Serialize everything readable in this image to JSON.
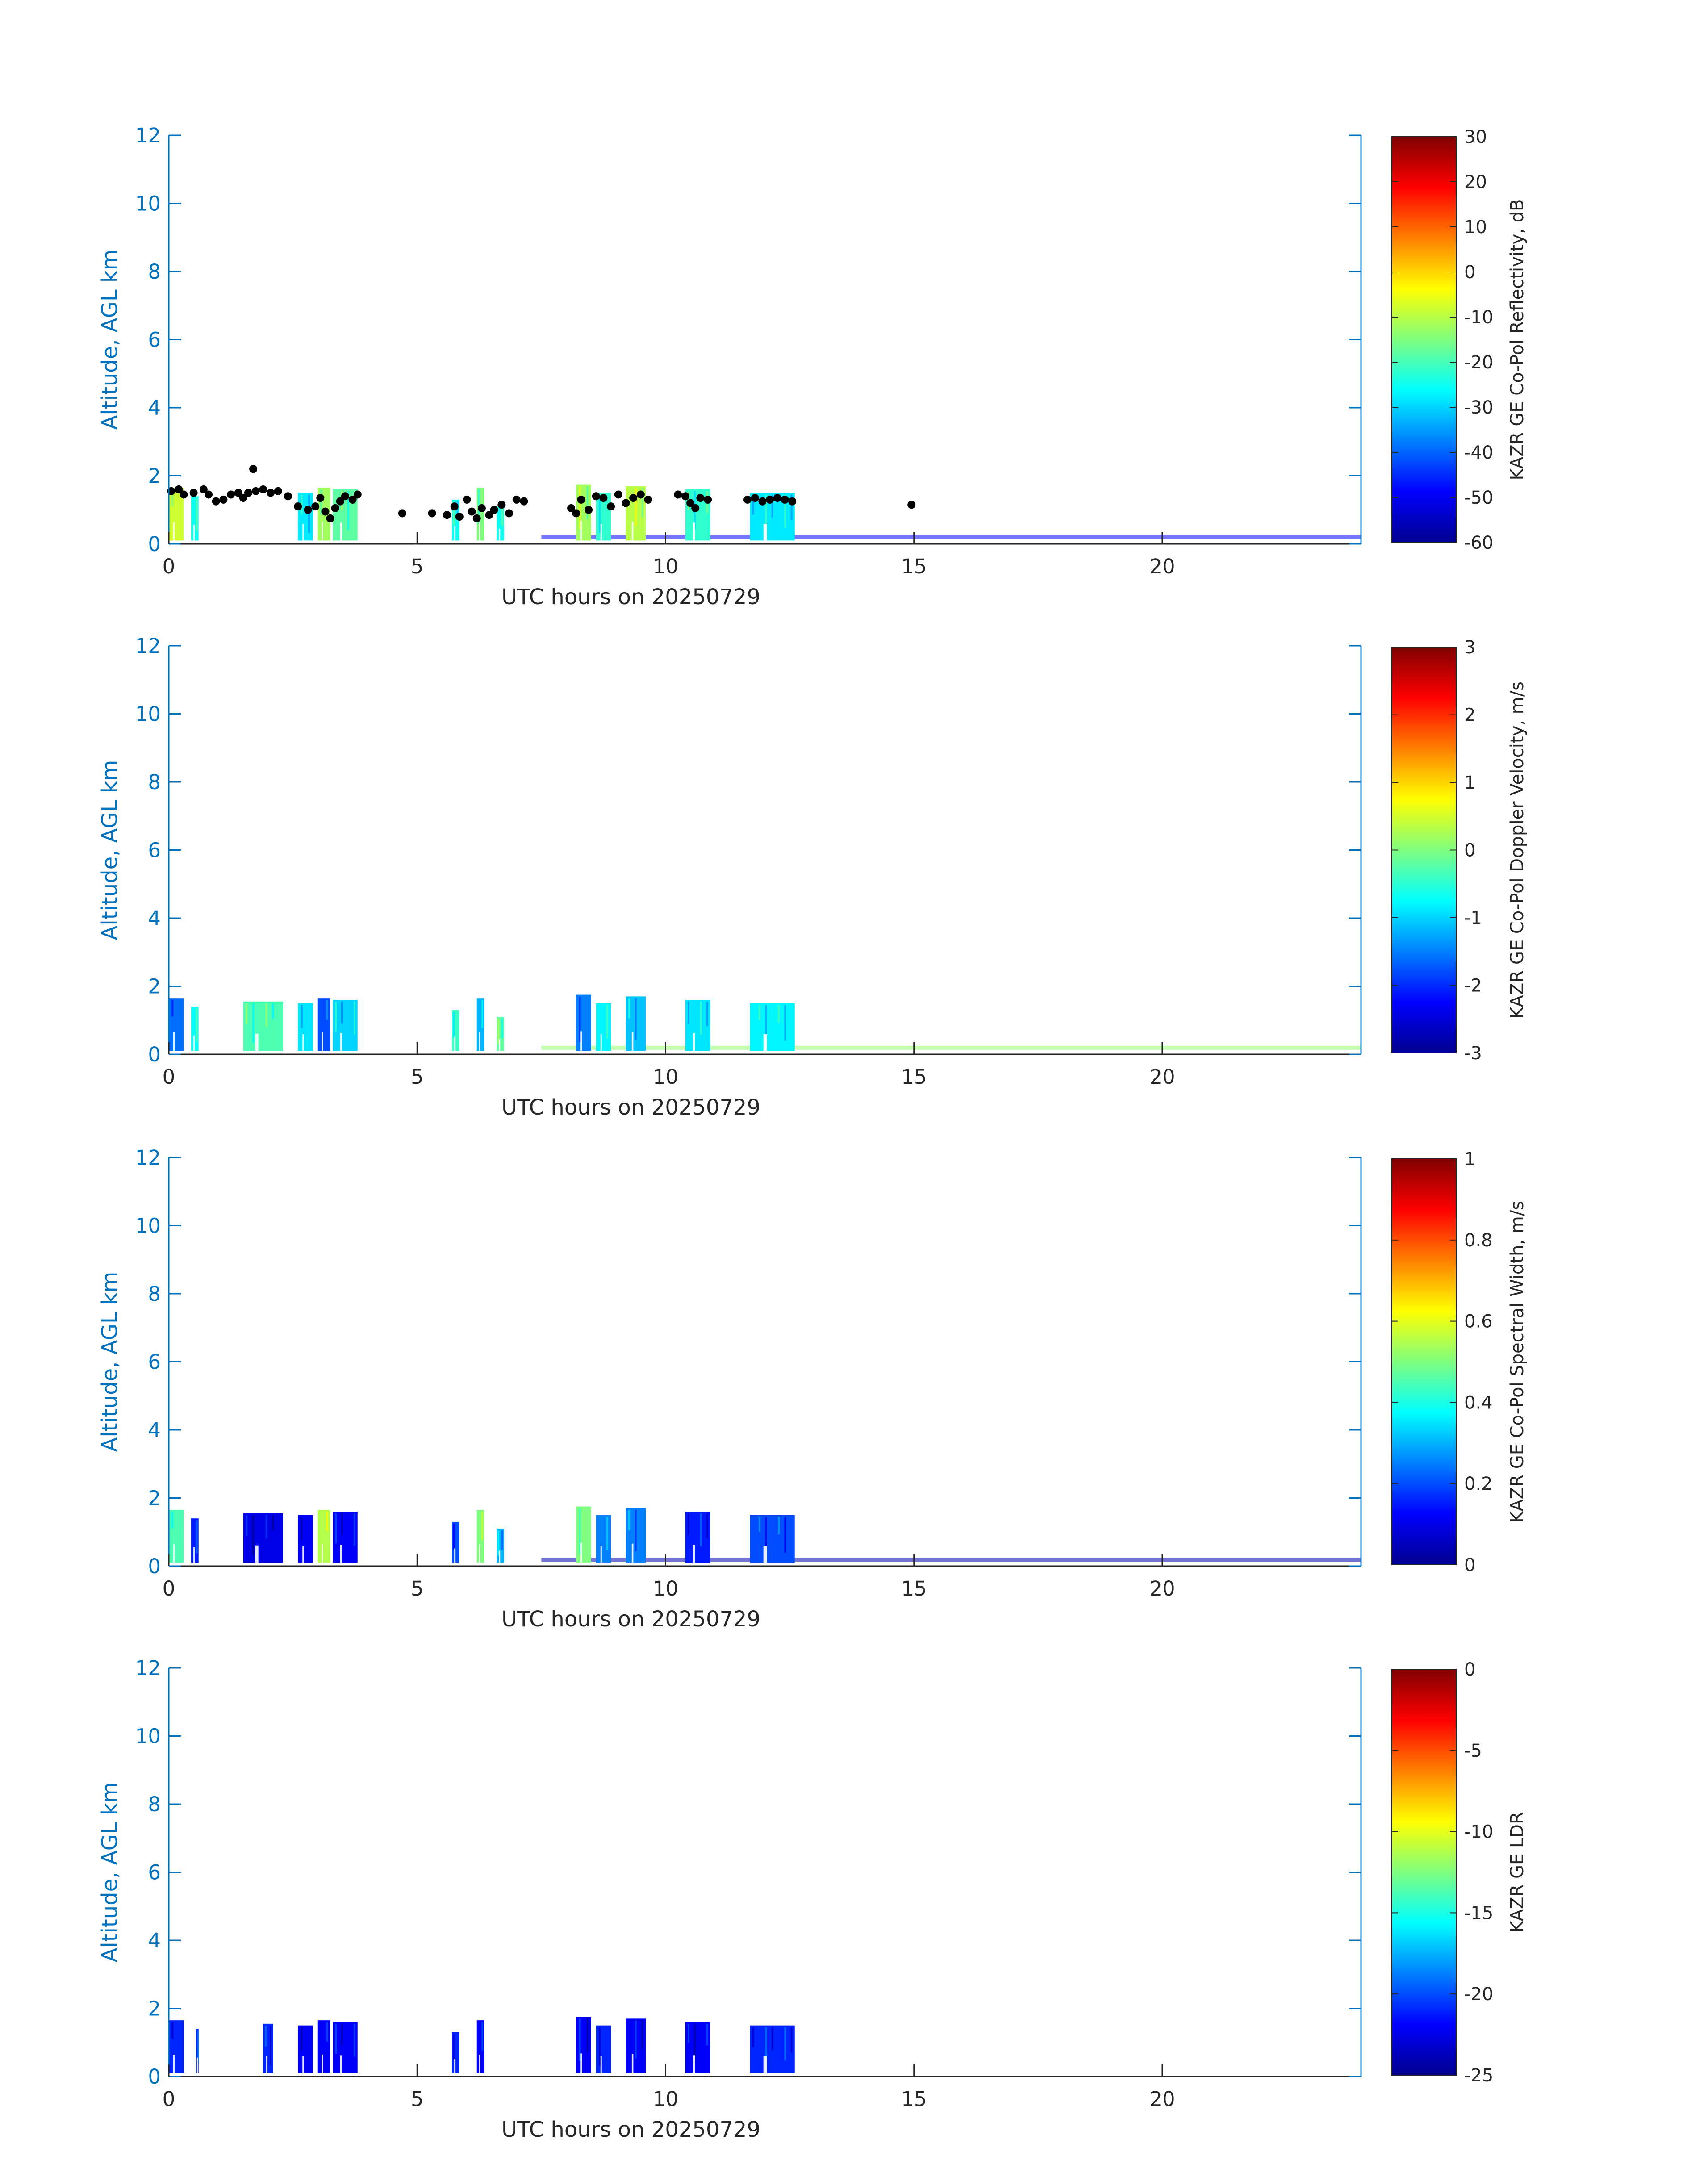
{
  "chart_data": [
    {
      "type": "heatmap",
      "title": "",
      "xlabel": "UTC hours on 20250729",
      "ylabel": "Altitude, AGL km",
      "xlim": [
        0,
        24
      ],
      "ylim": [
        0,
        12
      ],
      "xticks": [
        "0",
        "5",
        "10",
        "15",
        "20"
      ],
      "yticks": [
        "0",
        "2",
        "4",
        "6",
        "8",
        "10",
        "12"
      ],
      "colorbar": {
        "label": "KAZR GE Co-Pol Reflectivity, dB",
        "range": [
          -60,
          30
        ],
        "ticks": [
          "30",
          "20",
          "10",
          "0",
          "-10",
          "-20",
          "-30",
          "-40",
          "-50",
          "-60"
        ]
      },
      "echoes": [
        {
          "x0": 0.0,
          "x1": 0.3,
          "ytop": 1.65,
          "value": -8
        },
        {
          "x0": 0.45,
          "x1": 0.6,
          "ytop": 1.4,
          "value": -25
        },
        {
          "x0": 2.6,
          "x1": 2.9,
          "ytop": 1.5,
          "value": -28
        },
        {
          "x0": 3.0,
          "x1": 3.25,
          "ytop": 1.65,
          "value": -12
        },
        {
          "x0": 3.3,
          "x1": 3.8,
          "ytop": 1.6,
          "value": -18
        },
        {
          "x0": 5.7,
          "x1": 5.85,
          "ytop": 1.3,
          "value": -25
        },
        {
          "x0": 6.2,
          "x1": 6.35,
          "ytop": 1.65,
          "value": -15
        },
        {
          "x0": 6.6,
          "x1": 6.75,
          "ytop": 1.1,
          "value": -25
        },
        {
          "x0": 8.2,
          "x1": 8.5,
          "ytop": 1.75,
          "value": -12
        },
        {
          "x0": 8.6,
          "x1": 8.9,
          "ytop": 1.5,
          "value": -22
        },
        {
          "x0": 9.2,
          "x1": 9.6,
          "ytop": 1.7,
          "value": -10
        },
        {
          "x0": 10.4,
          "x1": 10.9,
          "ytop": 1.6,
          "value": -22
        },
        {
          "x0": 11.7,
          "x1": 12.6,
          "ytop": 1.5,
          "value": -28
        }
      ],
      "surface_layer": {
        "x0": 7.5,
        "x1": 24.0,
        "height": 0.25,
        "value": -48
      },
      "cloud_base_points": [
        [
          0.05,
          1.55
        ],
        [
          0.2,
          1.6
        ],
        [
          0.3,
          1.45
        ],
        [
          0.5,
          1.5
        ],
        [
          0.7,
          1.6
        ],
        [
          0.8,
          1.45
        ],
        [
          0.95,
          1.25
        ],
        [
          1.1,
          1.3
        ],
        [
          1.25,
          1.45
        ],
        [
          1.4,
          1.5
        ],
        [
          1.5,
          1.35
        ],
        [
          1.6,
          1.5
        ],
        [
          1.7,
          2.2
        ],
        [
          1.75,
          1.55
        ],
        [
          1.9,
          1.6
        ],
        [
          2.05,
          1.5
        ],
        [
          2.2,
          1.55
        ],
        [
          2.4,
          1.4
        ],
        [
          2.6,
          1.1
        ],
        [
          2.8,
          1.0
        ],
        [
          2.95,
          1.1
        ],
        [
          3.05,
          1.35
        ],
        [
          3.15,
          0.95
        ],
        [
          3.25,
          0.75
        ],
        [
          3.35,
          1.05
        ],
        [
          3.45,
          1.25
        ],
        [
          3.55,
          1.4
        ],
        [
          3.7,
          1.3
        ],
        [
          3.8,
          1.45
        ],
        [
          4.7,
          0.9
        ],
        [
          5.3,
          0.9
        ],
        [
          5.6,
          0.85
        ],
        [
          5.75,
          1.1
        ],
        [
          5.85,
          0.8
        ],
        [
          6.0,
          1.3
        ],
        [
          6.1,
          0.95
        ],
        [
          6.2,
          0.75
        ],
        [
          6.3,
          1.05
        ],
        [
          6.45,
          0.85
        ],
        [
          6.55,
          1.0
        ],
        [
          6.7,
          1.15
        ],
        [
          6.85,
          0.9
        ],
        [
          7.0,
          1.3
        ],
        [
          7.15,
          1.25
        ],
        [
          8.1,
          1.05
        ],
        [
          8.2,
          0.9
        ],
        [
          8.3,
          1.3
        ],
        [
          8.45,
          1.0
        ],
        [
          8.6,
          1.4
        ],
        [
          8.75,
          1.35
        ],
        [
          8.9,
          1.1
        ],
        [
          9.05,
          1.45
        ],
        [
          9.2,
          1.2
        ],
        [
          9.35,
          1.35
        ],
        [
          9.5,
          1.45
        ],
        [
          9.65,
          1.3
        ],
        [
          10.25,
          1.45
        ],
        [
          10.4,
          1.4
        ],
        [
          10.5,
          1.2
        ],
        [
          10.6,
          1.05
        ],
        [
          10.7,
          1.35
        ],
        [
          10.85,
          1.3
        ],
        [
          11.65,
          1.3
        ],
        [
          11.8,
          1.35
        ],
        [
          11.95,
          1.25
        ],
        [
          12.1,
          1.3
        ],
        [
          12.25,
          1.35
        ],
        [
          12.4,
          1.3
        ],
        [
          12.55,
          1.25
        ],
        [
          14.95,
          1.15
        ]
      ]
    },
    {
      "type": "heatmap",
      "title": "",
      "xlabel": "UTC hours on 20250729",
      "ylabel": "Altitude, AGL km",
      "xlim": [
        0,
        24
      ],
      "ylim": [
        0,
        12
      ],
      "xticks": [
        "0",
        "5",
        "10",
        "15",
        "20"
      ],
      "yticks": [
        "0",
        "2",
        "4",
        "6",
        "8",
        "10",
        "12"
      ],
      "colorbar": {
        "label": "KAZR GE Co-Pol Doppler Velocity, m/s",
        "range": [
          -3,
          3
        ],
        "ticks": [
          "3",
          "2",
          "1",
          "0",
          "-1",
          "-2",
          "-3"
        ]
      },
      "echoes": [
        {
          "x0": 0.0,
          "x1": 0.3,
          "ytop": 1.65,
          "value": -1.6
        },
        {
          "x0": 0.45,
          "x1": 0.6,
          "ytop": 1.4,
          "value": -0.7
        },
        {
          "x0": 1.5,
          "x1": 2.3,
          "ytop": 1.55,
          "value": -0.3
        },
        {
          "x0": 2.6,
          "x1": 2.9,
          "ytop": 1.5,
          "value": -0.9
        },
        {
          "x0": 3.0,
          "x1": 3.25,
          "ytop": 1.65,
          "value": -1.8
        },
        {
          "x0": 3.3,
          "x1": 3.8,
          "ytop": 1.6,
          "value": -1.0
        },
        {
          "x0": 5.7,
          "x1": 5.85,
          "ytop": 1.3,
          "value": -0.4
        },
        {
          "x0": 6.2,
          "x1": 6.35,
          "ytop": 1.65,
          "value": -1.2
        },
        {
          "x0": 6.6,
          "x1": 6.75,
          "ytop": 1.1,
          "value": -0.2
        },
        {
          "x0": 8.2,
          "x1": 8.5,
          "ytop": 1.75,
          "value": -1.5
        },
        {
          "x0": 8.6,
          "x1": 8.9,
          "ytop": 1.5,
          "value": -0.8
        },
        {
          "x0": 9.2,
          "x1": 9.6,
          "ytop": 1.7,
          "value": -1.1
        },
        {
          "x0": 10.4,
          "x1": 10.9,
          "ytop": 1.6,
          "value": -0.9
        },
        {
          "x0": 11.7,
          "x1": 12.6,
          "ytop": 1.5,
          "value": -0.8
        }
      ],
      "surface_layer": {
        "x0": 7.5,
        "x1": 24.0,
        "height": 0.25,
        "value": 0.1
      }
    },
    {
      "type": "heatmap",
      "title": "",
      "xlabel": "UTC hours on 20250729",
      "ylabel": "Altitude, AGL km",
      "xlim": [
        0,
        24
      ],
      "ylim": [
        0,
        12
      ],
      "xticks": [
        "0",
        "5",
        "10",
        "15",
        "20"
      ],
      "yticks": [
        "0",
        "2",
        "4",
        "6",
        "8",
        "10",
        "12"
      ],
      "colorbar": {
        "label": "KAZR GE Co-Pol Spectral Width, m/s",
        "range": [
          0,
          1
        ],
        "ticks": [
          "1",
          "0.8",
          "0.6",
          "0.4",
          "0.2",
          "0"
        ]
      },
      "echoes": [
        {
          "x0": 0.0,
          "x1": 0.3,
          "ytop": 1.65,
          "value": 0.45
        },
        {
          "x0": 0.45,
          "x1": 0.6,
          "ytop": 1.4,
          "value": 0.15
        },
        {
          "x0": 1.5,
          "x1": 2.3,
          "ytop": 1.55,
          "value": 0.1
        },
        {
          "x0": 2.6,
          "x1": 2.9,
          "ytop": 1.5,
          "value": 0.12
        },
        {
          "x0": 3.0,
          "x1": 3.25,
          "ytop": 1.65,
          "value": 0.55
        },
        {
          "x0": 3.3,
          "x1": 3.8,
          "ytop": 1.6,
          "value": 0.12
        },
        {
          "x0": 5.7,
          "x1": 5.85,
          "ytop": 1.3,
          "value": 0.2
        },
        {
          "x0": 6.2,
          "x1": 6.35,
          "ytop": 1.65,
          "value": 0.5
        },
        {
          "x0": 6.6,
          "x1": 6.75,
          "ytop": 1.1,
          "value": 0.3
        },
        {
          "x0": 8.2,
          "x1": 8.5,
          "ytop": 1.75,
          "value": 0.5
        },
        {
          "x0": 8.6,
          "x1": 8.9,
          "ytop": 1.5,
          "value": 0.25
        },
        {
          "x0": 9.2,
          "x1": 9.6,
          "ytop": 1.7,
          "value": 0.25
        },
        {
          "x0": 10.4,
          "x1": 10.9,
          "ytop": 1.6,
          "value": 0.15
        },
        {
          "x0": 11.7,
          "x1": 12.6,
          "ytop": 1.5,
          "value": 0.2
        }
      ],
      "surface_layer": {
        "x0": 7.5,
        "x1": 24.0,
        "height": 0.25,
        "value": 0.05
      }
    },
    {
      "type": "heatmap",
      "title": "",
      "xlabel": "UTC hours on 20250729",
      "ylabel": "Altitude, AGL km",
      "xlim": [
        0,
        24
      ],
      "ylim": [
        0,
        12
      ],
      "xticks": [
        "0",
        "5",
        "10",
        "15",
        "20"
      ],
      "yticks": [
        "0",
        "2",
        "4",
        "6",
        "8",
        "10",
        "12"
      ],
      "colorbar": {
        "label": "KAZR GE LDR",
        "range": [
          -25,
          0
        ],
        "ticks": [
          "0",
          "-5",
          "-10",
          "-15",
          "-20",
          "-25"
        ]
      },
      "echoes": [
        {
          "x0": 0.0,
          "x1": 0.3,
          "ytop": 1.65,
          "value": -21
        },
        {
          "x0": 0.55,
          "x1": 0.6,
          "ytop": 1.4,
          "value": -21
        },
        {
          "x0": 1.9,
          "x1": 2.1,
          "ytop": 1.55,
          "value": -21
        },
        {
          "x0": 2.6,
          "x1": 2.9,
          "ytop": 1.5,
          "value": -22
        },
        {
          "x0": 3.0,
          "x1": 3.25,
          "ytop": 1.65,
          "value": -22
        },
        {
          "x0": 3.3,
          "x1": 3.8,
          "ytop": 1.6,
          "value": -22
        },
        {
          "x0": 5.7,
          "x1": 5.85,
          "ytop": 1.3,
          "value": -21
        },
        {
          "x0": 6.2,
          "x1": 6.35,
          "ytop": 1.65,
          "value": -22
        },
        {
          "x0": 8.2,
          "x1": 8.5,
          "ytop": 1.75,
          "value": -22
        },
        {
          "x0": 8.6,
          "x1": 8.9,
          "ytop": 1.5,
          "value": -21
        },
        {
          "x0": 9.2,
          "x1": 9.6,
          "ytop": 1.7,
          "value": -22
        },
        {
          "x0": 10.4,
          "x1": 10.9,
          "ytop": 1.6,
          "value": -22
        },
        {
          "x0": 11.7,
          "x1": 12.6,
          "ytop": 1.5,
          "value": -21
        }
      ]
    }
  ],
  "colors": {
    "axis": "#0072bd",
    "text": "#262626",
    "cloud_base_points": "#000000"
  }
}
